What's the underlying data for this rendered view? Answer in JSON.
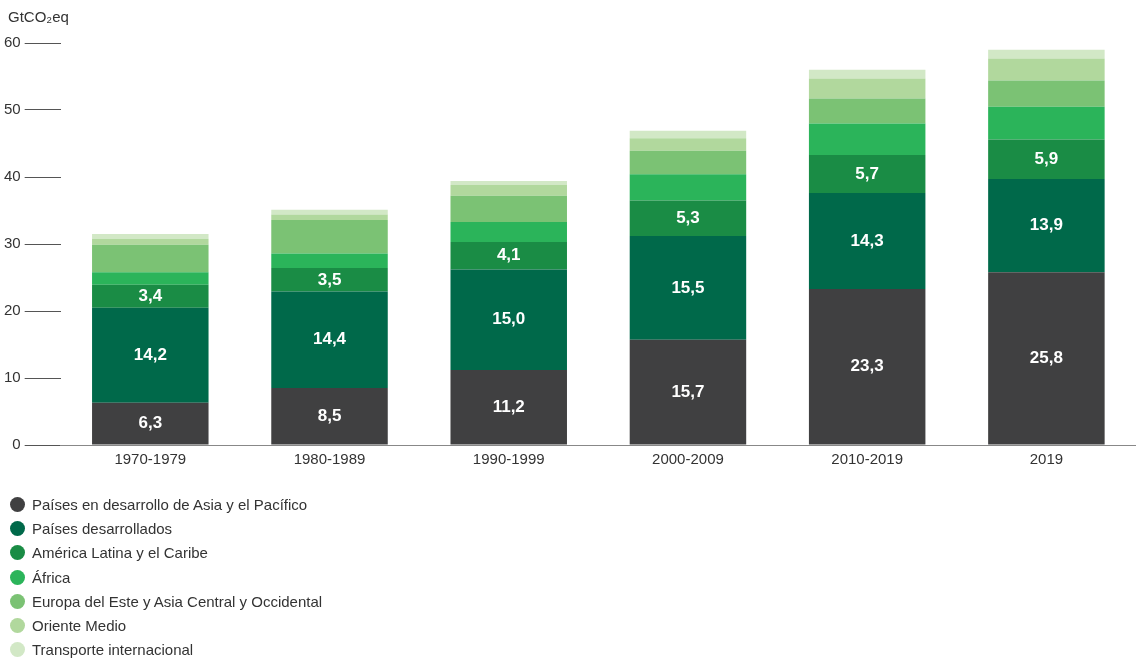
{
  "chart_data": {
    "type": "bar",
    "stacked": true,
    "ylabel": "GtCO₂eq",
    "categories": [
      "1970-1979",
      "1980-1989",
      "1990-1999",
      "2000-2009",
      "2010-2019",
      "2019"
    ],
    "ylim": [
      0,
      60
    ],
    "yticks": [
      0,
      10,
      20,
      30,
      40,
      50,
      60
    ],
    "grid": false,
    "legend": "bottom left",
    "series": [
      {
        "name": "Países en desarrollo de Asia y el Pacífico",
        "color": "#404041",
        "values": [
          6.3,
          8.5,
          11.2,
          15.7,
          23.3,
          25.8
        ],
        "value_labels": [
          "6,3",
          "8,5",
          "11,2",
          "15,7",
          "23,3",
          "25,8"
        ]
      },
      {
        "name": "Países desarrollados",
        "color": "#00694a",
        "values": [
          14.2,
          14.4,
          15.0,
          15.5,
          14.3,
          13.9
        ],
        "value_labels": [
          "14,2",
          "14,4",
          "15,0",
          "15,5",
          "14,3",
          "13,9"
        ]
      },
      {
        "name": "América Latina y el Caribe",
        "color": "#1a8c45",
        "values": [
          3.4,
          3.5,
          4.1,
          5.3,
          5.7,
          5.9
        ],
        "value_labels": [
          "3,4",
          "3,5",
          "4,1",
          "5,3",
          "5,7",
          "5,9"
        ]
      },
      {
        "name": "África",
        "color": "#2bb45a",
        "values": [
          1.9,
          2.2,
          3.0,
          3.9,
          4.7,
          4.9
        ]
      },
      {
        "name": "Europa del Este y Asia Central y Occidental",
        "color": "#7bc274",
        "values": [
          4.1,
          5.0,
          3.9,
          3.5,
          3.7,
          3.9
        ]
      },
      {
        "name": "Oriente Medio",
        "color": "#b1d89d",
        "values": [
          0.9,
          0.8,
          1.6,
          1.9,
          3.0,
          3.3
        ]
      },
      {
        "name": "Transporte internacional",
        "color": "#d2e8c6",
        "values": [
          0.7,
          0.7,
          0.6,
          1.1,
          1.3,
          1.3
        ]
      }
    ]
  }
}
